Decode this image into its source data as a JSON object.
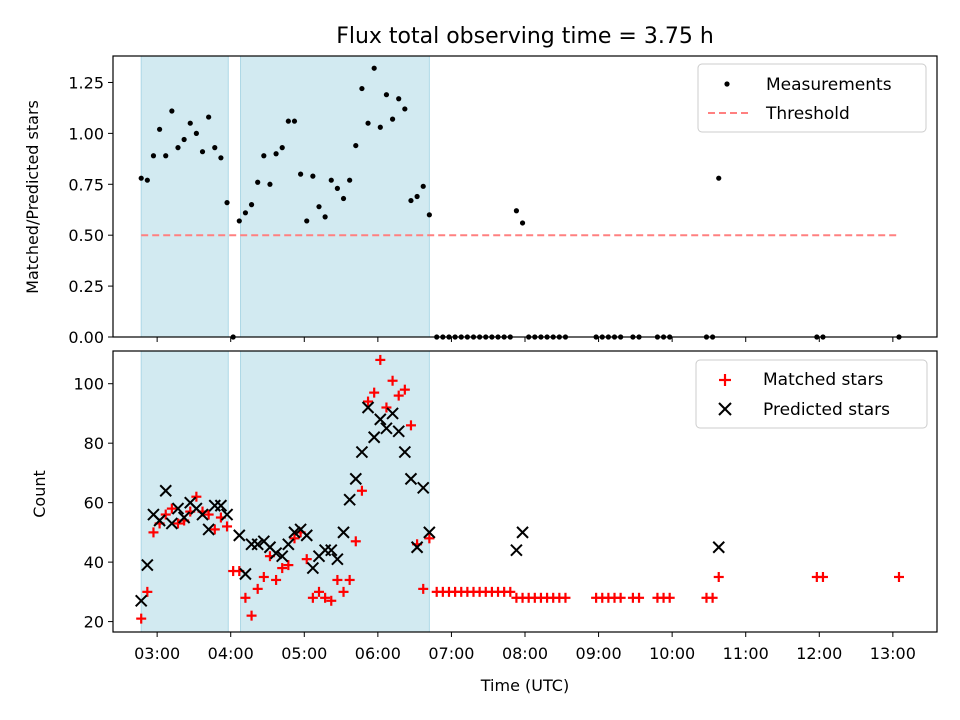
{
  "chart_data": {
    "title": "Flux total observing time = 3.75 h",
    "xlabel": "Time (UTC)",
    "x_ticks": [
      "03:00",
      "04:00",
      "05:00",
      "06:00",
      "07:00",
      "08:00",
      "09:00",
      "10:00",
      "11:00",
      "12:00",
      "13:00"
    ],
    "xlim_hours": [
      2.4,
      13.6
    ],
    "shaded_intervals": [
      [
        "02:47",
        "03:58"
      ],
      [
        "04:08",
        "06:42"
      ]
    ],
    "shade_color": "#add8e6",
    "panels": [
      {
        "type": "scatter",
        "ylabel": "Matched/Predicted stars",
        "ylim": [
          0,
          1.38
        ],
        "y_ticks": [
          "0.00",
          "0.25",
          "0.50",
          "0.75",
          "1.00",
          "1.25"
        ],
        "threshold": {
          "name": "Threshold",
          "value": 0.5,
          "color": "#ff8080",
          "from": "02:47",
          "to": "13:05"
        },
        "series": [
          {
            "name": "Measurements",
            "color": "#000000",
            "points": [
              [
                "02:47",
                0.78
              ],
              [
                "02:52",
                0.77
              ],
              [
                "02:57",
                0.89
              ],
              [
                "03:02",
                1.02
              ],
              [
                "03:07",
                0.89
              ],
              [
                "03:12",
                1.11
              ],
              [
                "03:17",
                0.93
              ],
              [
                "03:22",
                0.97
              ],
              [
                "03:27",
                1.05
              ],
              [
                "03:32",
                1.0
              ],
              [
                "03:37",
                0.91
              ],
              [
                "03:42",
                1.08
              ],
              [
                "03:47",
                0.93
              ],
              [
                "03:52",
                0.88
              ],
              [
                "03:57",
                0.66
              ],
              [
                "04:02",
                0.0
              ],
              [
                "04:07",
                0.57
              ],
              [
                "04:12",
                0.61
              ],
              [
                "04:17",
                0.65
              ],
              [
                "04:22",
                0.76
              ],
              [
                "04:27",
                0.89
              ],
              [
                "04:32",
                0.75
              ],
              [
                "04:37",
                0.9
              ],
              [
                "04:42",
                0.93
              ],
              [
                "04:47",
                1.06
              ],
              [
                "04:52",
                1.06
              ],
              [
                "04:57",
                0.8
              ],
              [
                "05:02",
                0.57
              ],
              [
                "05:07",
                0.79
              ],
              [
                "05:12",
                0.64
              ],
              [
                "05:17",
                0.59
              ],
              [
                "05:22",
                0.77
              ],
              [
                "05:27",
                0.73
              ],
              [
                "05:32",
                0.68
              ],
              [
                "05:37",
                0.77
              ],
              [
                "05:42",
                0.94
              ],
              [
                "05:47",
                1.22
              ],
              [
                "05:52",
                1.05
              ],
              [
                "05:57",
                1.32
              ],
              [
                "06:02",
                1.03
              ],
              [
                "06:07",
                1.19
              ],
              [
                "06:12",
                1.07
              ],
              [
                "06:17",
                1.17
              ],
              [
                "06:22",
                1.12
              ],
              [
                "06:27",
                0.67
              ],
              [
                "06:32",
                0.69
              ],
              [
                "06:37",
                0.74
              ],
              [
                "06:42",
                0.6
              ],
              [
                "06:48",
                0.0
              ],
              [
                "06:53",
                0.0
              ],
              [
                "06:58",
                0.0
              ],
              [
                "07:03",
                0.0
              ],
              [
                "07:08",
                0.0
              ],
              [
                "07:13",
                0.0
              ],
              [
                "07:18",
                0.0
              ],
              [
                "07:23",
                0.0
              ],
              [
                "07:28",
                0.0
              ],
              [
                "07:33",
                0.0
              ],
              [
                "07:38",
                0.0
              ],
              [
                "07:43",
                0.0
              ],
              [
                "07:48",
                0.0
              ],
              [
                "07:53",
                0.62
              ],
              [
                "07:58",
                0.56
              ],
              [
                "08:03",
                0.0
              ],
              [
                "08:08",
                0.0
              ],
              [
                "08:13",
                0.0
              ],
              [
                "08:18",
                0.0
              ],
              [
                "08:23",
                0.0
              ],
              [
                "08:28",
                0.0
              ],
              [
                "08:33",
                0.0
              ],
              [
                "08:58",
                0.0
              ],
              [
                "09:03",
                0.0
              ],
              [
                "09:08",
                0.0
              ],
              [
                "09:13",
                0.0
              ],
              [
                "09:18",
                0.0
              ],
              [
                "09:28",
                0.0
              ],
              [
                "09:33",
                0.0
              ],
              [
                "09:48",
                0.0
              ],
              [
                "09:53",
                0.0
              ],
              [
                "09:58",
                0.0
              ],
              [
                "10:28",
                0.0
              ],
              [
                "10:33",
                0.0
              ],
              [
                "10:38",
                0.78
              ],
              [
                "11:58",
                0.0
              ],
              [
                "12:03",
                0.0
              ],
              [
                "13:05",
                0.0
              ]
            ]
          }
        ],
        "legend": {
          "placement": "top-right",
          "entries": [
            "Measurements",
            "Threshold"
          ]
        }
      },
      {
        "type": "scatter",
        "ylabel": "Count",
        "ylim": [
          16.5,
          111
        ],
        "y_ticks": [
          "20",
          "40",
          "60",
          "80",
          "100"
        ],
        "series": [
          {
            "name": "Matched stars",
            "marker": "+",
            "color": "#ff0000",
            "points": [
              [
                "02:47",
                21
              ],
              [
                "02:52",
                30
              ],
              [
                "02:57",
                50
              ],
              [
                "03:02",
                53
              ],
              [
                "03:07",
                56
              ],
              [
                "03:12",
                58
              ],
              [
                "03:17",
                53
              ],
              [
                "03:22",
                54
              ],
              [
                "03:27",
                57
              ],
              [
                "03:32",
                62
              ],
              [
                "03:37",
                57
              ],
              [
                "03:42",
                56
              ],
              [
                "03:47",
                51
              ],
              [
                "03:52",
                55
              ],
              [
                "03:57",
                52
              ],
              [
                "04:02",
                37
              ],
              [
                "04:07",
                37
              ],
              [
                "04:12",
                28
              ],
              [
                "04:17",
                22
              ],
              [
                "04:22",
                31
              ],
              [
                "04:27",
                35
              ],
              [
                "04:32",
                42
              ],
              [
                "04:37",
                34
              ],
              [
                "04:42",
                38
              ],
              [
                "04:47",
                39
              ],
              [
                "04:52",
                48
              ],
              [
                "04:57",
                50
              ],
              [
                "05:02",
                41
              ],
              [
                "05:07",
                28
              ],
              [
                "05:12",
                30
              ],
              [
                "05:17",
                28
              ],
              [
                "05:22",
                27
              ],
              [
                "05:27",
                34
              ],
              [
                "05:32",
                30
              ],
              [
                "05:37",
                34
              ],
              [
                "05:42",
                47
              ],
              [
                "05:47",
                64
              ],
              [
                "05:52",
                94
              ],
              [
                "05:57",
                97
              ],
              [
                "06:02",
                108
              ],
              [
                "06:07",
                92
              ],
              [
                "06:12",
                101
              ],
              [
                "06:17",
                96
              ],
              [
                "06:22",
                98
              ],
              [
                "06:27",
                86
              ],
              [
                "06:32",
                46
              ],
              [
                "06:37",
                31
              ],
              [
                "06:42",
                48
              ],
              [
                "06:48",
                30
              ],
              [
                "06:53",
                30
              ],
              [
                "06:58",
                30
              ],
              [
                "07:03",
                30
              ],
              [
                "07:08",
                30
              ],
              [
                "07:13",
                30
              ],
              [
                "07:18",
                30
              ],
              [
                "07:23",
                30
              ],
              [
                "07:28",
                30
              ],
              [
                "07:33",
                30
              ],
              [
                "07:38",
                30
              ],
              [
                "07:43",
                30
              ],
              [
                "07:48",
                30
              ],
              [
                "07:53",
                28
              ],
              [
                "07:58",
                28
              ],
              [
                "08:03",
                28
              ],
              [
                "08:08",
                28
              ],
              [
                "08:13",
                28
              ],
              [
                "08:18",
                28
              ],
              [
                "08:23",
                28
              ],
              [
                "08:28",
                28
              ],
              [
                "08:33",
                28
              ],
              [
                "08:58",
                28
              ],
              [
                "09:03",
                28
              ],
              [
                "09:08",
                28
              ],
              [
                "09:13",
                28
              ],
              [
                "09:18",
                28
              ],
              [
                "09:28",
                28
              ],
              [
                "09:33",
                28
              ],
              [
                "09:48",
                28
              ],
              [
                "09:53",
                28
              ],
              [
                "09:58",
                28
              ],
              [
                "10:28",
                28
              ],
              [
                "10:33",
                28
              ],
              [
                "10:38",
                35
              ],
              [
                "11:58",
                35
              ],
              [
                "12:03",
                35
              ],
              [
                "13:05",
                35
              ]
            ]
          },
          {
            "name": "Predicted stars",
            "marker": "x",
            "color": "#000000",
            "points": [
              [
                "02:47",
                27
              ],
              [
                "02:52",
                39
              ],
              [
                "02:57",
                56
              ],
              [
                "03:02",
                54
              ],
              [
                "03:07",
                64
              ],
              [
                "03:12",
                53
              ],
              [
                "03:17",
                58
              ],
              [
                "03:22",
                55
              ],
              [
                "03:27",
                60
              ],
              [
                "03:32",
                58
              ],
              [
                "03:37",
                56
              ],
              [
                "03:42",
                51
              ],
              [
                "03:47",
                59
              ],
              [
                "03:52",
                59
              ],
              [
                "03:57",
                56
              ],
              [
                "04:07",
                49
              ],
              [
                "04:12",
                36
              ],
              [
                "04:17",
                46
              ],
              [
                "04:22",
                46
              ],
              [
                "04:27",
                47
              ],
              [
                "04:32",
                45
              ],
              [
                "04:37",
                43
              ],
              [
                "04:42",
                42
              ],
              [
                "04:47",
                46
              ],
              [
                "04:52",
                50
              ],
              [
                "04:57",
                51
              ],
              [
                "05:02",
                49
              ],
              [
                "05:07",
                38
              ],
              [
                "05:12",
                42
              ],
              [
                "05:17",
                44
              ],
              [
                "05:22",
                44
              ],
              [
                "05:27",
                41
              ],
              [
                "05:32",
                50
              ],
              [
                "05:37",
                61
              ],
              [
                "05:42",
                68
              ],
              [
                "05:47",
                77
              ],
              [
                "05:52",
                92
              ],
              [
                "05:57",
                82
              ],
              [
                "06:02",
                88
              ],
              [
                "06:07",
                85
              ],
              [
                "06:12",
                90
              ],
              [
                "06:17",
                84
              ],
              [
                "06:22",
                77
              ],
              [
                "06:27",
                68
              ],
              [
                "06:32",
                45
              ],
              [
                "06:37",
                65
              ],
              [
                "06:42",
                50
              ],
              [
                "07:53",
                44
              ],
              [
                "07:58",
                50
              ],
              [
                "10:38",
                45
              ]
            ]
          }
        ],
        "legend": {
          "placement": "top-right",
          "entries": [
            "Matched stars",
            "Predicted stars"
          ]
        }
      }
    ]
  }
}
